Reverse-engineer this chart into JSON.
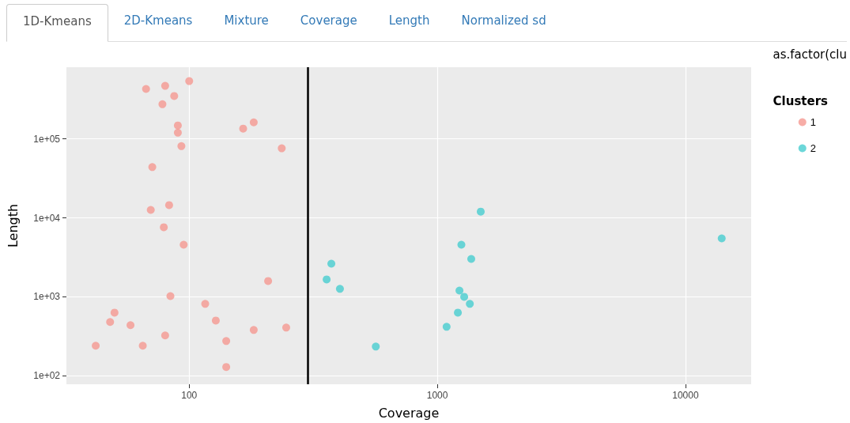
{
  "chart_data": {
    "type": "scatter",
    "xlabel": "Coverage",
    "ylabel": "Length",
    "legend_title": "Clusters",
    "annotations": [
      "1D-Kmeans",
      "2D-Kmeans",
      "Mixture",
      "Coverage",
      "Length",
      "Normalized sd",
      "as.factor(clu"
    ],
    "log": "xy",
    "xlim": [
      32,
      18400
    ],
    "ylim": [
      78,
      810000
    ],
    "xticks": [
      100,
      1000,
      10000
    ],
    "yticks": [
      {
        "value": 100,
        "label": "1e+02"
      },
      {
        "value": 1000,
        "label": "1e+03"
      },
      {
        "value": 10000,
        "label": "1e+04"
      },
      {
        "value": 100000,
        "label": "1e+05"
      }
    ],
    "grid": true,
    "legend": "right",
    "marker": "circle",
    "ref_lines": [
      {
        "axis": "x",
        "value": 300,
        "color": "#000000",
        "line_style": "solid"
      }
    ],
    "series": [
      {
        "name": "1",
        "color": "#f59891",
        "x": [
          67,
          80,
          100,
          87,
          78,
          90,
          90,
          165,
          182,
          93,
          236,
          71,
          70,
          83,
          79,
          95,
          208,
          84,
          116,
          50,
          48,
          58,
          128,
          182,
          246,
          80,
          141,
          65,
          42,
          141
        ],
        "values": [
          430000,
          470000,
          540000,
          350000,
          275000,
          148000,
          120000,
          135000,
          162000,
          81000,
          76000,
          44000,
          12600,
          14500,
          7600,
          4570,
          1585,
          1020,
          813,
          630,
          480,
          437,
          500,
          380,
          407,
          324,
          275,
          240,
          240,
          129
        ]
      },
      {
        "name": "2",
        "color": "#47cdd0",
        "x": [
          1496,
          14000,
          1250,
          1370,
          374,
          358,
          405,
          1228,
          1283,
          1352,
          1210,
          1090,
          565
        ],
        "values": [
          12000,
          5500,
          4570,
          3020,
          2630,
          1660,
          1260,
          1200,
          1000,
          813,
          630,
          417,
          234
        ]
      }
    ]
  }
}
